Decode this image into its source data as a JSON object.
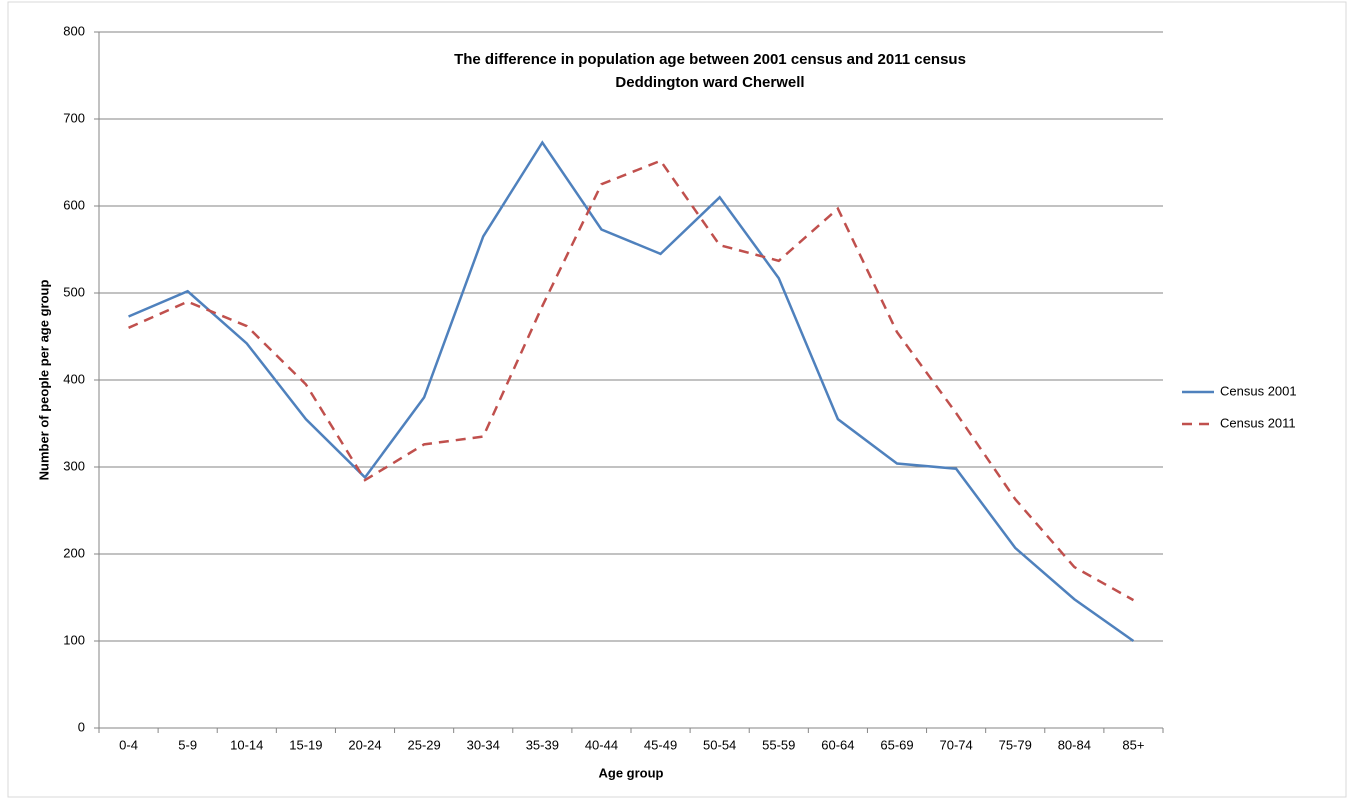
{
  "chart_data": {
    "type": "line",
    "title": "The difference in population age between 2001 census and 2011 census",
    "subtitle": "Deddington ward Cherwell",
    "x_label": "Age group",
    "y_label": "Number of people per age group",
    "categories": [
      "0-4",
      "5-9",
      "10-14",
      "15-19",
      "20-24",
      "25-29",
      "30-34",
      "35-39",
      "40-44",
      "45-49",
      "50-54",
      "55-59",
      "60-64",
      "65-69",
      "70-74",
      "75-79",
      "80-84",
      "85+"
    ],
    "series": [
      {
        "name": "Census 2001",
        "color": "#4f81bd",
        "dashed": false,
        "values": [
          473,
          502,
          442,
          355,
          288,
          380,
          565,
          673,
          573,
          545,
          610,
          517,
          355,
          304,
          298,
          207,
          148,
          100
        ]
      },
      {
        "name": "Census 2011",
        "color": "#c0504d",
        "dashed": true,
        "values": [
          460,
          490,
          462,
          395,
          285,
          326,
          335,
          485,
          625,
          652,
          555,
          537,
          597,
          455,
          362,
          263,
          185,
          147
        ]
      }
    ],
    "ylim": [
      0,
      800
    ],
    "yticks": [
      0,
      100,
      200,
      300,
      400,
      500,
      600,
      700,
      800
    ],
    "grid": true,
    "legend": "right"
  }
}
